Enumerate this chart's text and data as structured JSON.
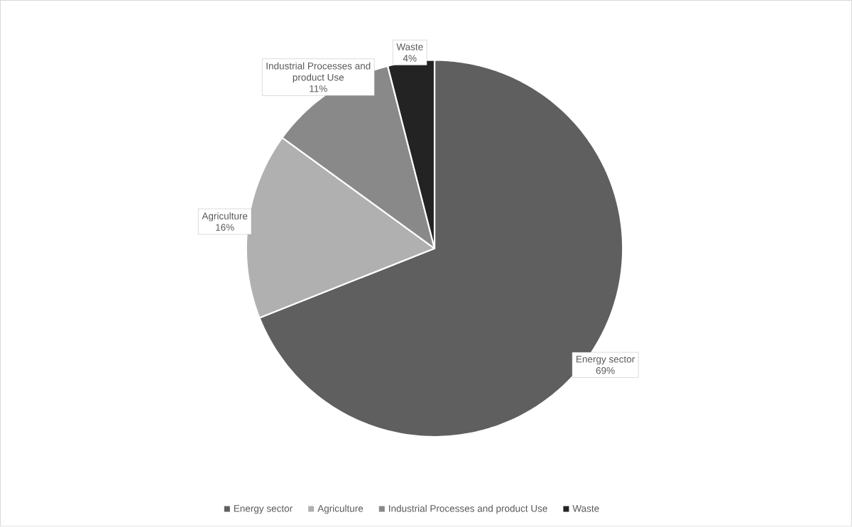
{
  "chart_data": {
    "type": "pie",
    "categories": [
      "Energy sector",
      "Agriculture",
      "Industrial Processes and product Use",
      "Waste"
    ],
    "values": [
      69,
      16,
      11,
      4
    ],
    "colors": [
      "#5f5f5f",
      "#b0b0b0",
      "#898989",
      "#232323"
    ],
    "value_labels": [
      "69%",
      "16%",
      "11%",
      "4%"
    ],
    "legend": "bottom"
  }
}
